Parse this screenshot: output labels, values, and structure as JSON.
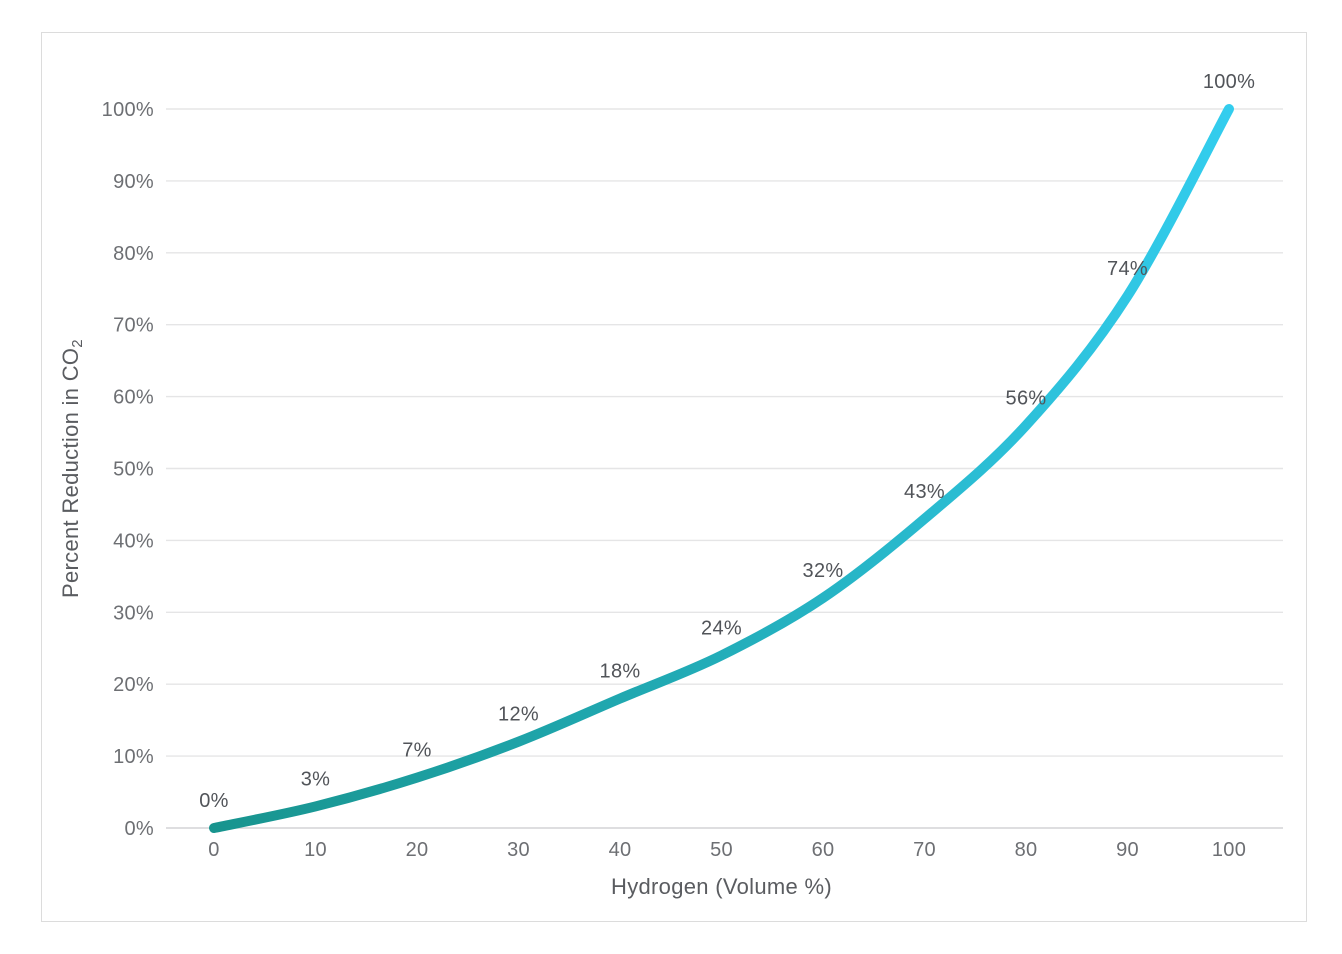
{
  "chart_data": {
    "type": "line",
    "title": "",
    "xlabel": "Hydrogen (Volume %)",
    "ylabel": "Percent Reduction in CO₂",
    "ylabel_base": "Percent Reduction in CO",
    "ylabel_subscript": "2",
    "x": [
      0,
      10,
      20,
      30,
      40,
      50,
      60,
      70,
      80,
      90,
      100
    ],
    "values": [
      0,
      3,
      7,
      12,
      18,
      24,
      32,
      43,
      56,
      74,
      100
    ],
    "data_labels": [
      "0%",
      "3%",
      "7%",
      "12%",
      "18%",
      "24%",
      "32%",
      "43%",
      "56%",
      "74%",
      "100%"
    ],
    "x_ticks": [
      "0",
      "10",
      "20",
      "30",
      "40",
      "50",
      "60",
      "70",
      "80",
      "90",
      "100"
    ],
    "y_ticks": [
      "0%",
      "10%",
      "20%",
      "30%",
      "40%",
      "50%",
      "60%",
      "70%",
      "80%",
      "90%",
      "100%"
    ],
    "xlim": [
      0,
      100
    ],
    "ylim": [
      0,
      100
    ],
    "grid": "horizontal-only",
    "legend": "none",
    "line_width": 10,
    "line_gradient": [
      "#18948e",
      "#21aab4",
      "#33cdee"
    ],
    "colors": {
      "tick_label": "#6d6f73",
      "data_label": "#515459",
      "axis_title": "#5a5c60",
      "grid_line": "#e5e5e6",
      "axis_line": "#d4d4d6",
      "border": "#dcdcdc",
      "background": "#ffffff"
    }
  }
}
